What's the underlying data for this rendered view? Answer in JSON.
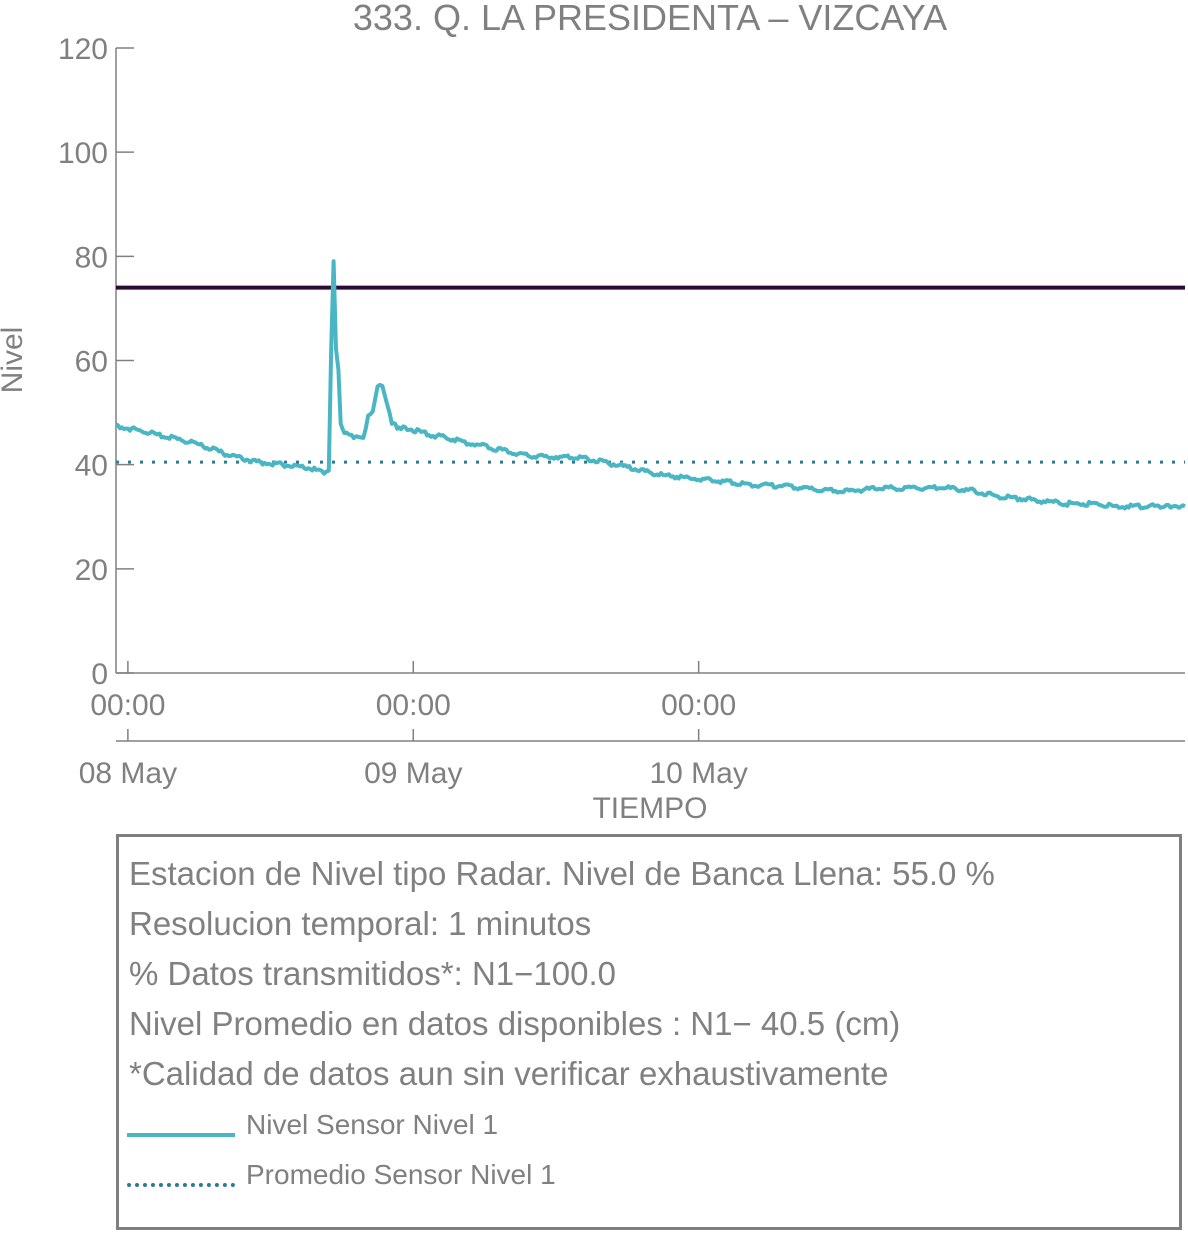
{
  "chart_data": {
    "type": "line",
    "title": "333. Q. LA PRESIDENTA – VIZCAYA",
    "xlabel": "TIEMPO",
    "ylabel": "Nivel",
    "ylim": [
      0,
      120
    ],
    "yticks": [
      0,
      20,
      40,
      60,
      80,
      100,
      120
    ],
    "xlim_hours": [
      -1,
      88.9
    ],
    "xticks": [
      {
        "hour": 0,
        "time": "00:00",
        "date": "08 May"
      },
      {
        "hour": 24,
        "time": "00:00",
        "date": "09 May"
      },
      {
        "hour": 48,
        "time": "00:00",
        "date": "10 May"
      }
    ],
    "grid": false,
    "series": [
      {
        "name": "Nivel Sensor Nivel 1",
        "color": "#4ab6c4",
        "style": "solid",
        "x_hours": [
          -1,
          1,
          3,
          5,
          7,
          9,
          11,
          13,
          15,
          16.5,
          16.9,
          17.1,
          17.3,
          17.5,
          17.7,
          17.9,
          18.2,
          18.6,
          19,
          19.4,
          19.8,
          20.2,
          20.6,
          21,
          21.4,
          21.8,
          22.2,
          22.8,
          23.5,
          25,
          27,
          29,
          31,
          33,
          35,
          37,
          39,
          41,
          43,
          45,
          47,
          49,
          51,
          53,
          55,
          57,
          59,
          61,
          63,
          65,
          67,
          69,
          71,
          73,
          75,
          77,
          79,
          81,
          83,
          85,
          87,
          88.9
        ],
        "values": [
          47.5,
          46.5,
          45.5,
          44.5,
          43,
          41.5,
          40.5,
          40,
          39.5,
          38.5,
          38.5,
          62,
          79,
          62,
          58,
          48,
          46,
          45.5,
          45.5,
          45.5,
          45.5,
          49,
          50,
          55,
          55.5,
          52,
          48,
          47,
          47,
          46,
          45,
          44,
          43,
          42,
          41.5,
          41.5,
          41,
          40,
          39,
          38,
          37.5,
          37,
          36.5,
          36,
          36,
          35.5,
          35,
          35,
          35.5,
          35.5,
          35.5,
          35.5,
          35,
          34,
          33.5,
          33,
          32.5,
          32.5,
          32,
          32,
          32,
          32
        ]
      },
      {
        "name": "Promedio Sensor Nivel 1",
        "color": "#2b7a99",
        "style": "dotted",
        "x_hours": [
          -1,
          88.9
        ],
        "values": [
          40.5,
          40.5
        ]
      },
      {
        "color": "#2d0a36",
        "style": "solid",
        "x_hours": [
          -1,
          88.9
        ],
        "values": [
          74,
          74
        ]
      }
    ]
  },
  "info": {
    "line1": "Estacion de Nivel tipo Radar. Nivel de Banca Llena: 55.0 %",
    "line2": "Resolucion temporal: 1 minutos",
    "line3": "% Datos transmitidos*: N1−100.0",
    "line4": "Nivel Promedio en datos disponibles : N1− 40.5 (cm)",
    "line5": "*Calidad de datos aun sin verificar exhaustivamente"
  },
  "legend": {
    "item1": "Nivel Sensor Nivel 1",
    "item2": "Promedio Sensor Nivel 1"
  }
}
